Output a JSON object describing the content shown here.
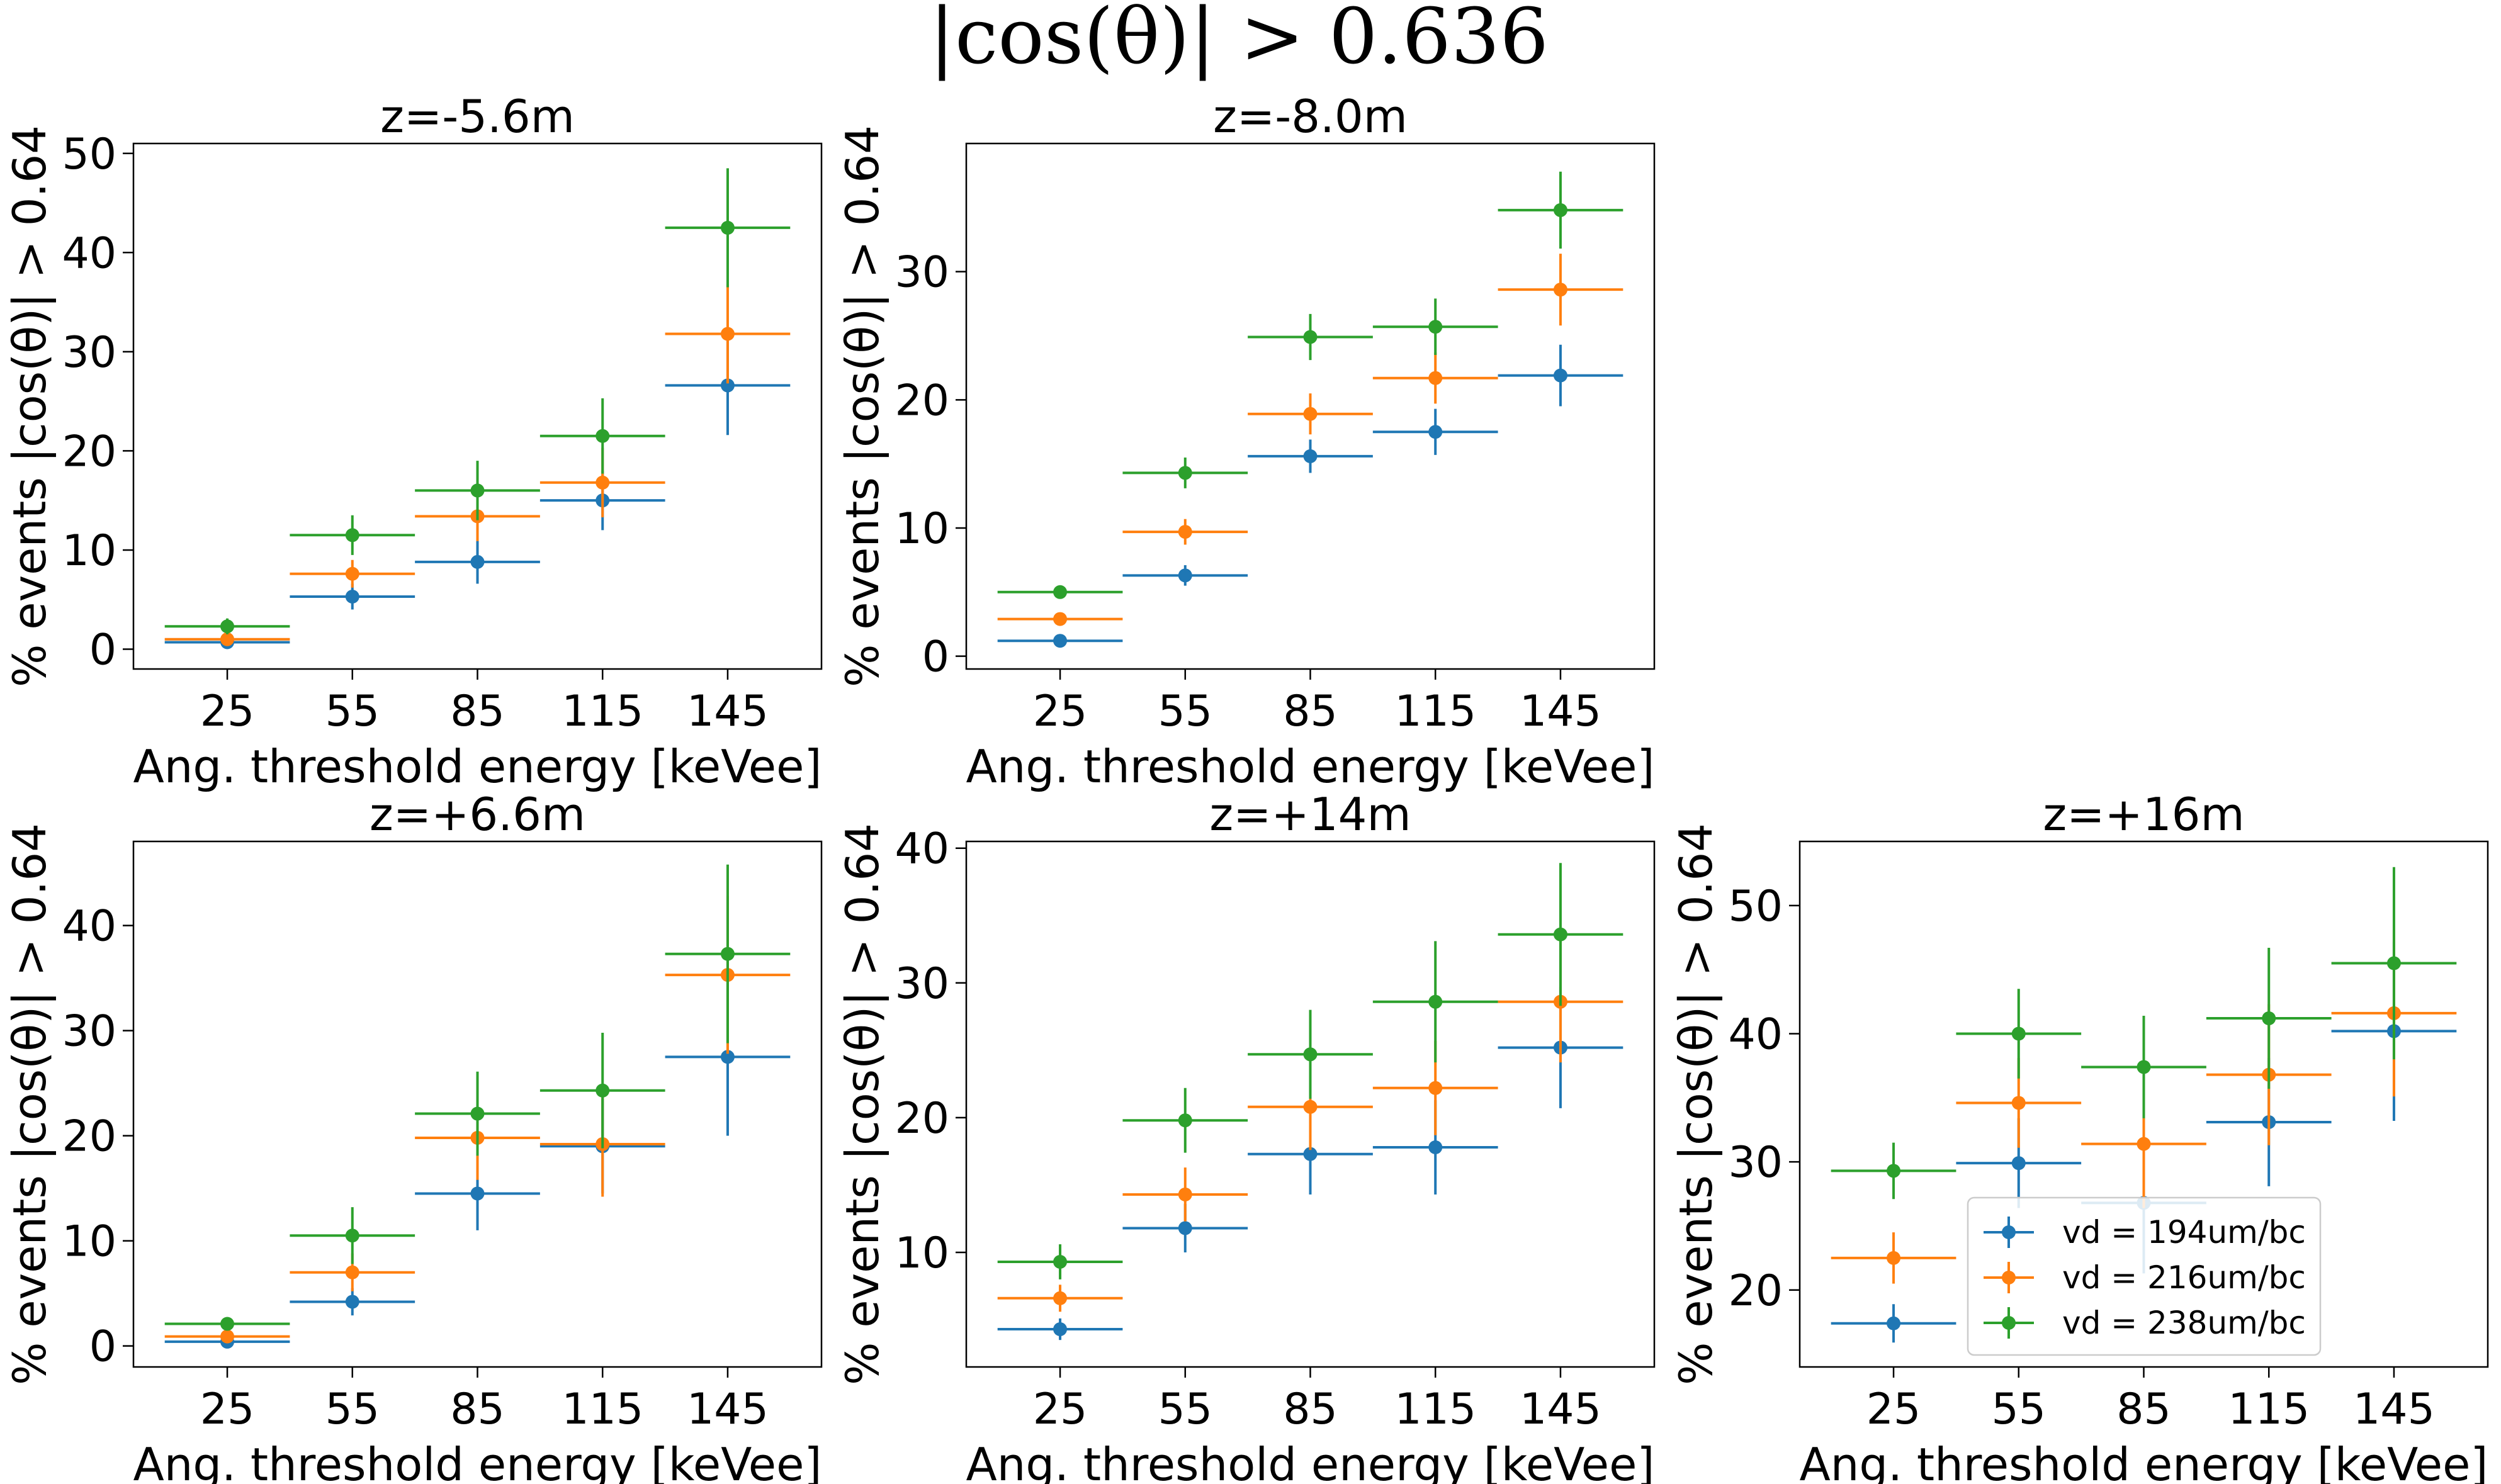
{
  "figure": {
    "suptitle": "|cos(θ)| > 0.636",
    "colors": [
      "#1f77b4",
      "#ff7f0e",
      "#2ca02c"
    ]
  },
  "legend": {
    "placement": "lower-right of panel 5",
    "entries": [
      "vd = 194um/bc",
      "vd = 216um/bc",
      "vd = 238um/bc"
    ]
  },
  "chart_data": [
    {
      "type": "scatter",
      "style": "errorbar",
      "title": "z=-5.6m",
      "xlabel": "Ang. threshold energy [keVee]",
      "ylabel": "% events |cos(θ)| > 0.64",
      "categories": [
        "25",
        "55",
        "85",
        "115",
        "145"
      ],
      "x": [
        25,
        55,
        85,
        115,
        145
      ],
      "x_halfwidth": 15,
      "xlim": [
        2.5,
        167.5
      ],
      "ylim": [
        -2,
        51
      ],
      "yticks": [
        0,
        10,
        20,
        30,
        40,
        50
      ],
      "grid": false,
      "series": [
        {
          "name": "vd = 194um/bc",
          "values": [
            0.7,
            5.3,
            8.8,
            15.0,
            26.6
          ],
          "yerr": [
            0.5,
            1.3,
            2.2,
            3.0,
            5.0
          ]
        },
        {
          "name": "vd = 216um/bc",
          "values": [
            1.0,
            7.6,
            13.4,
            16.8,
            31.8
          ],
          "yerr": [
            0.5,
            1.4,
            2.5,
            3.5,
            5.0
          ]
        },
        {
          "name": "vd = 238um/bc",
          "values": [
            2.3,
            11.5,
            16.0,
            21.5,
            42.5
          ],
          "yerr": [
            0.8,
            2.0,
            3.0,
            3.8,
            6.0
          ]
        }
      ]
    },
    {
      "type": "scatter",
      "style": "errorbar",
      "title": "z=-8.0m",
      "xlabel": "Ang. threshold energy [keVee]",
      "ylabel": "% events |cos(θ)| > 0.64",
      "categories": [
        "25",
        "55",
        "85",
        "115",
        "145"
      ],
      "x": [
        25,
        55,
        85,
        115,
        145
      ],
      "x_halfwidth": 15,
      "xlim": [
        2.5,
        167.5
      ],
      "ylim": [
        -1,
        40
      ],
      "yticks": [
        0,
        10,
        20,
        30
      ],
      "grid": false,
      "series": [
        {
          "name": "vd = 194um/bc",
          "values": [
            1.2,
            6.3,
            15.6,
            17.5,
            21.9
          ],
          "yerr": [
            0.4,
            0.8,
            1.3,
            1.8,
            2.4
          ]
        },
        {
          "name": "vd = 216um/bc",
          "values": [
            2.9,
            9.7,
            18.9,
            21.7,
            28.6
          ],
          "yerr": [
            0.5,
            1.0,
            1.6,
            2.0,
            2.8
          ]
        },
        {
          "name": "vd = 238um/bc",
          "values": [
            5.0,
            14.3,
            24.9,
            25.7,
            34.8
          ],
          "yerr": [
            0.5,
            1.2,
            1.8,
            2.2,
            3.0
          ]
        }
      ]
    },
    {
      "type": "scatter",
      "style": "errorbar",
      "title": "z=+6.6m",
      "xlabel": "Ang. threshold energy [keVee]",
      "ylabel": "% events |cos(θ)| > 0.64",
      "categories": [
        "25",
        "55",
        "85",
        "115",
        "145"
      ],
      "x": [
        25,
        55,
        85,
        115,
        145
      ],
      "x_halfwidth": 15,
      "xlim": [
        2.5,
        167.5
      ],
      "ylim": [
        -2,
        48
      ],
      "yticks": [
        0,
        10,
        20,
        30,
        40
      ],
      "grid": false,
      "series": [
        {
          "name": "vd = 194um/bc",
          "values": [
            0.4,
            4.2,
            14.5,
            19.0,
            27.5
          ],
          "yerr": [
            0.3,
            1.3,
            3.5,
            4.5,
            7.5
          ]
        },
        {
          "name": "vd = 216um/bc",
          "values": [
            0.9,
            7.0,
            19.8,
            19.2,
            35.3
          ],
          "yerr": [
            0.5,
            1.8,
            4.0,
            5.0,
            7.5
          ]
        },
        {
          "name": "vd = 238um/bc",
          "values": [
            2.1,
            10.5,
            22.1,
            24.3,
            37.3
          ],
          "yerr": [
            0.6,
            2.7,
            4.0,
            5.5,
            8.5
          ]
        }
      ]
    },
    {
      "type": "scatter",
      "style": "errorbar",
      "title": "z=+14m",
      "xlabel": "Ang. threshold energy [keVee]",
      "ylabel": "% events |cos(θ)| > 0.64",
      "categories": [
        "25",
        "55",
        "85",
        "115",
        "145"
      ],
      "x": [
        25,
        55,
        85,
        115,
        145
      ],
      "x_halfwidth": 15,
      "xlim": [
        2.5,
        167.5
      ],
      "ylim": [
        1.5,
        40.5
      ],
      "yticks": [
        10,
        20,
        30,
        40
      ],
      "grid": false,
      "series": [
        {
          "name": "vd = 194um/bc",
          "values": [
            4.3,
            11.8,
            17.3,
            17.8,
            25.2
          ],
          "yerr": [
            0.8,
            1.8,
            3.0,
            3.5,
            4.5
          ]
        },
        {
          "name": "vd = 216um/bc",
          "values": [
            6.6,
            14.3,
            20.8,
            22.2,
            28.6
          ],
          "yerr": [
            1.0,
            2.0,
            3.2,
            3.5,
            4.5
          ]
        },
        {
          "name": "vd = 238um/bc",
          "values": [
            9.3,
            19.8,
            24.7,
            28.6,
            33.6
          ],
          "yerr": [
            1.3,
            2.4,
            3.3,
            4.5,
            5.3
          ]
        }
      ]
    },
    {
      "type": "scatter",
      "style": "errorbar",
      "title": "z=+16m",
      "xlabel": "Ang. threshold energy [keVee]",
      "ylabel": "% events |cos(θ)| > 0.64",
      "categories": [
        "25",
        "55",
        "85",
        "115",
        "145"
      ],
      "x": [
        25,
        55,
        85,
        115,
        145
      ],
      "x_halfwidth": 15,
      "xlim": [
        2.5,
        167.5
      ],
      "ylim": [
        14,
        55
      ],
      "yticks": [
        20,
        30,
        40,
        50
      ],
      "grid": false,
      "legend": "lower-right",
      "series": [
        {
          "name": "vd = 194um/bc",
          "values": [
            17.4,
            29.9,
            26.8,
            33.1,
            40.2
          ],
          "yerr": [
            1.5,
            3.5,
            5.5,
            5.0,
            7.0
          ]
        },
        {
          "name": "vd = 216um/bc",
          "values": [
            22.5,
            34.6,
            31.4,
            36.8,
            41.6
          ],
          "yerr": [
            2.0,
            3.5,
            5.0,
            5.5,
            6.5
          ]
        },
        {
          "name": "vd = 238um/bc",
          "values": [
            29.3,
            40.0,
            37.4,
            41.2,
            45.5
          ],
          "yerr": [
            2.2,
            3.5,
            4.0,
            5.5,
            7.5
          ]
        }
      ]
    }
  ]
}
